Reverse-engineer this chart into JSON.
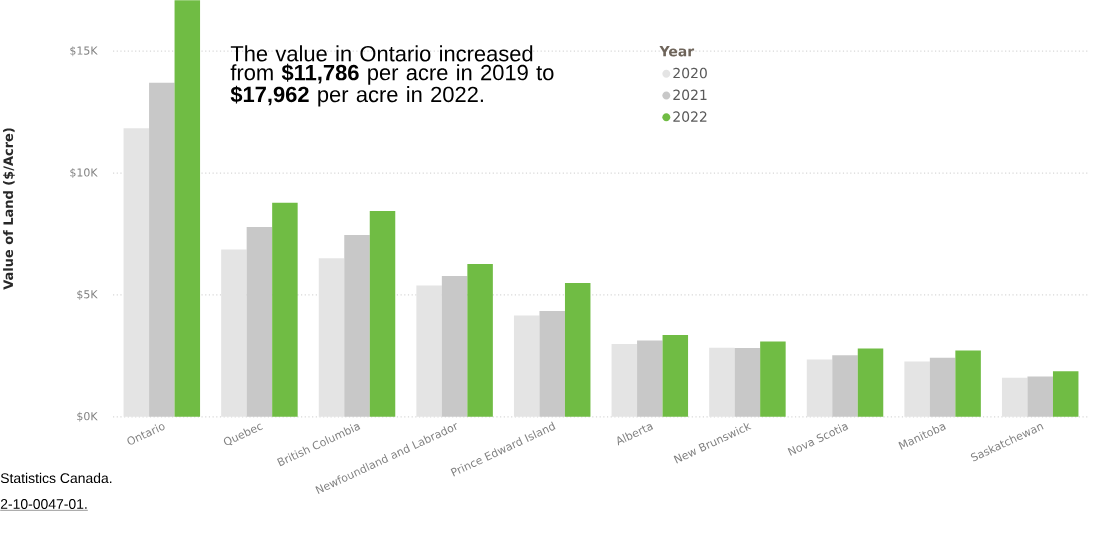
{
  "chart_data": {
    "type": "bar",
    "ylabel": "Value of Land ($/Acre)",
    "legend_title": "Year",
    "legend": "top",
    "grid": "y",
    "marker": "circle",
    "categories": [
      "Ontario",
      "Quebec",
      "British Columbia",
      "Newfoundland and Labrador",
      "Prince Edward Island",
      "Alberta",
      "New Brunswick",
      "Nova Scotia",
      "Manitoba",
      "Saskatchewan"
    ],
    "series": [
      {
        "name": "2020",
        "color": "#e4e4e4",
        "values": [
          11.84,
          6.86,
          6.51,
          5.39,
          4.16,
          2.99,
          2.83,
          2.35,
          2.27,
          1.6
        ]
      },
      {
        "name": "2021",
        "color": "#c8c8c8",
        "values": [
          13.71,
          7.79,
          7.46,
          5.78,
          4.34,
          3.13,
          2.82,
          2.53,
          2.42,
          1.65
        ]
      },
      {
        "name": "2022",
        "color": "#70bc44",
        "values": [
          17.09,
          8.78,
          8.44,
          6.27,
          5.49,
          3.36,
          3.09,
          2.8,
          2.72,
          1.87
        ]
      }
    ],
    "ylim": [
      0,
      17.09
    ],
    "yticks": [
      {
        "value": 0,
        "label": "$0K"
      },
      {
        "value": 5,
        "label": "$5K"
      },
      {
        "value": 10,
        "label": "$10K"
      },
      {
        "value": 15,
        "label": "$15K"
      }
    ],
    "annotations": [
      "The value in Ontario increased from **$11,786** per acre in 2019 to **$17,962** per acre in 2022.",
      "Statistics Canada.",
      "2-10-0047-01."
    ]
  }
}
